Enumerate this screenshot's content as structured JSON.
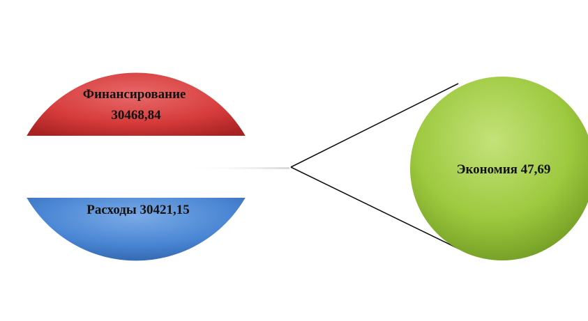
{
  "chart_data": {
    "type": "pie",
    "title": "",
    "slices": [
      {
        "label": "Финансирование 30468,84",
        "name": "Финансирование",
        "value": 30468.84,
        "color": "#d63b3b"
      },
      {
        "label": "Расходы 30421,15",
        "name": "Расходы",
        "value": 30421.15,
        "color": "#4a86d4"
      },
      {
        "label": "Экономия 47,69",
        "name": "Экономия",
        "value": 47.69,
        "color": "#9dc93f"
      }
    ]
  }
}
